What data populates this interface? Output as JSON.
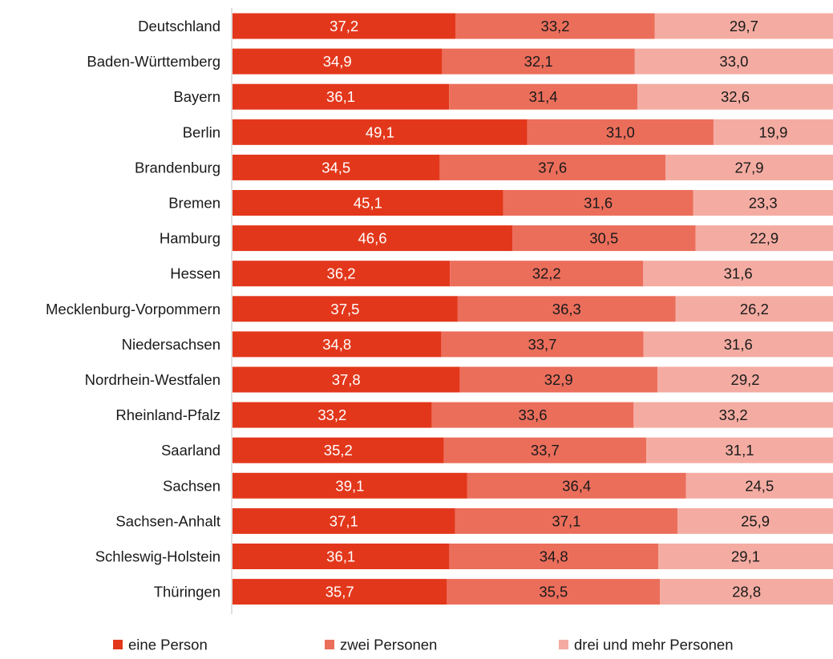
{
  "chart_data": {
    "type": "bar",
    "orientation": "horizontal",
    "stacked": true,
    "title": "",
    "xlabel": "",
    "ylabel": "",
    "xlim": [
      0,
      100
    ],
    "grid": false,
    "legend_position": "bottom",
    "categories": [
      "Deutschland",
      "Baden-Württemberg",
      "Bayern",
      "Berlin",
      "Brandenburg",
      "Bremen",
      "Hamburg",
      "Hessen",
      "Mecklenburg-Vorpommern",
      "Niedersachsen",
      "Nordrhein-Westfalen",
      "Rheinland-Pfalz",
      "Saarland",
      "Sachsen",
      "Sachsen-Anhalt",
      "Schleswig-Holstein",
      "Thüringen"
    ],
    "series": [
      {
        "name": "eine Person",
        "color": "#e3371b",
        "label_color": "#ffffff",
        "values": [
          37.2,
          34.9,
          36.1,
          49.1,
          34.5,
          45.1,
          46.6,
          36.2,
          37.5,
          34.8,
          37.8,
          33.2,
          35.2,
          39.1,
          37.1,
          36.1,
          35.7
        ],
        "labels": [
          "37,2",
          "34,9",
          "36,1",
          "49,1",
          "34,5",
          "45,1",
          "46,6",
          "36,2",
          "37,5",
          "34,8",
          "37,8",
          "33,2",
          "35,2",
          "39,1",
          "37,1",
          "36,1",
          "35,7"
        ]
      },
      {
        "name": "zwei Personen",
        "color": "#eb6e5b",
        "label_color": "#1a1a1a",
        "values": [
          33.2,
          32.1,
          31.4,
          31.0,
          37.6,
          31.6,
          30.5,
          32.2,
          36.3,
          33.7,
          32.9,
          33.6,
          33.7,
          36.4,
          37.1,
          34.8,
          35.5
        ],
        "labels": [
          "33,2",
          "32,1",
          "31,4",
          "31,0",
          "37,6",
          "31,6",
          "30,5",
          "32,2",
          "36,3",
          "33,7",
          "32,9",
          "33,6",
          "33,7",
          "36,4",
          "37,1",
          "34,8",
          "35,5"
        ]
      },
      {
        "name": "drei und mehr Personen",
        "color": "#f4aca2",
        "label_color": "#1a1a1a",
        "values": [
          29.7,
          33.0,
          32.6,
          19.9,
          27.9,
          23.3,
          22.9,
          31.6,
          26.2,
          31.6,
          29.2,
          33.2,
          31.1,
          24.5,
          25.9,
          29.1,
          28.8
        ],
        "labels": [
          "29,7",
          "33,0",
          "32,6",
          "19,9",
          "27,9",
          "23,3",
          "22,9",
          "31,6",
          "26,2",
          "31,6",
          "29,2",
          "33,2",
          "31,1",
          "24,5",
          "25,9",
          "29,1",
          "28,8"
        ]
      }
    ]
  }
}
